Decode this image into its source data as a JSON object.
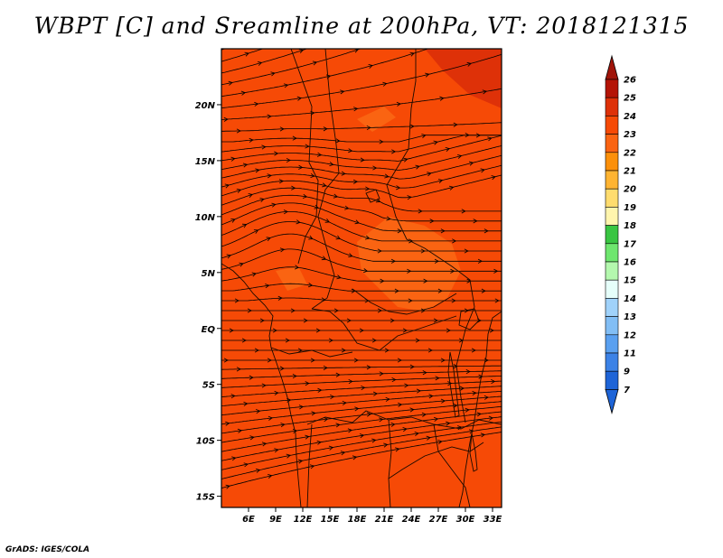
{
  "title": "WBPT [C] and Sreamline at 200hPa, VT: 2018121315",
  "credit": "GrADS: IGES/COLA",
  "map": {
    "lon_range": [
      3,
      34
    ],
    "lat_range": [
      -16,
      25
    ],
    "lon_ticks": [
      {
        "v": 6,
        "label": "6E"
      },
      {
        "v": 9,
        "label": "9E"
      },
      {
        "v": 12,
        "label": "12E"
      },
      {
        "v": 15,
        "label": "15E"
      },
      {
        "v": 18,
        "label": "18E"
      },
      {
        "v": 21,
        "label": "21E"
      },
      {
        "v": 24,
        "label": "24E"
      },
      {
        "v": 27,
        "label": "27E"
      },
      {
        "v": 30,
        "label": "30E"
      },
      {
        "v": 33,
        "label": "33E"
      }
    ],
    "lat_ticks": [
      {
        "v": 20,
        "label": "20N"
      },
      {
        "v": 15,
        "label": "15N"
      },
      {
        "v": 10,
        "label": "10N"
      },
      {
        "v": 5,
        "label": "5N"
      },
      {
        "v": 0,
        "label": "EQ"
      },
      {
        "v": -5,
        "label": "5S"
      },
      {
        "v": -10,
        "label": "10S"
      },
      {
        "v": -15,
        "label": "15S"
      }
    ],
    "base_color": "#f64a06",
    "dark_color": "#de3108",
    "light_color": "#fa6412"
  },
  "colorbar": {
    "labels": [
      "26",
      "25",
      "24",
      "23",
      "22",
      "21",
      "20",
      "19",
      "18",
      "17",
      "16",
      "15",
      "14",
      "13",
      "12",
      "11",
      "9",
      "7"
    ],
    "colors": [
      "#b41406",
      "#de3108",
      "#f64a06",
      "#fa6412",
      "#fc900a",
      "#ffb432",
      "#ffdc6e",
      "#fff5ad",
      "#39c542",
      "#6ee66e",
      "#b4f8ae",
      "#e6fffa",
      "#a0d2fa",
      "#82bef5",
      "#5aa0f0",
      "#3c82e6",
      "#1e64d7"
    ],
    "tip_top_color": "#a0140a",
    "tip_bottom_color": "#1e64d7"
  }
}
